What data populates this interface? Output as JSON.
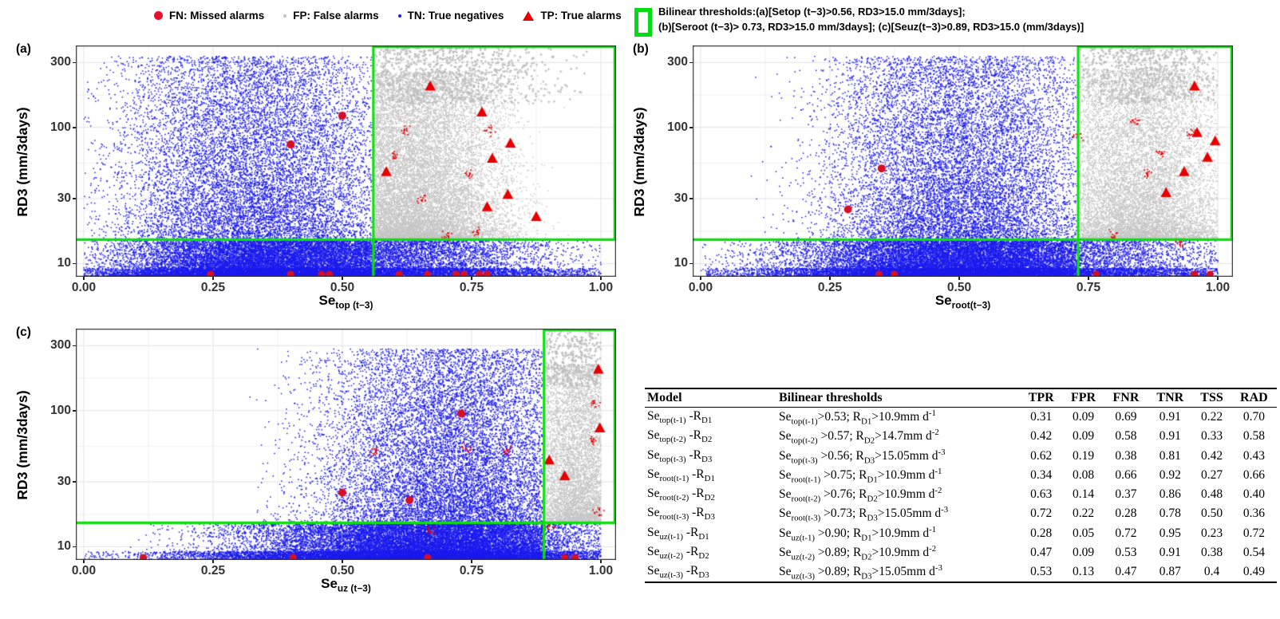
{
  "legend": {
    "items": [
      {
        "key": "FN",
        "label": "FN: Missed alarms"
      },
      {
        "key": "FP",
        "label": "FP: False alarms"
      },
      {
        "key": "TN",
        "label": "TN: True negatives"
      },
      {
        "key": "TP",
        "label": "TP: True alarms"
      }
    ],
    "bilinear": {
      "line1": "Bilinear thresholds:(a)[Setop (t−3)>0.56, RD3>15.0 mm/3days];",
      "line2": "(b)[Seroot (t−3)> 0.73, RD3>15.0 mm/3days]; (c)[Seuz(t−3)>0.89, RD3>15.0 (mm/3days)]"
    }
  },
  "colors": {
    "tn_blue": "#1b1bee",
    "fp_gray": "#c6c6c6",
    "fp_gray_sparse": "#bdbdbd",
    "tp_red": "#e60000",
    "fn_red": "#d60f26",
    "threshold_green": "#0ce00c",
    "grid_major": "#e3e3e3",
    "grid_minor": "#efefef",
    "border": "#333333"
  },
  "chart_data": [
    {
      "type": "scatter",
      "panel": "a",
      "tag": "(a)",
      "xlabel": "Se_{top (t−3)}",
      "ylabel": "RD3 (mm/3days)",
      "x_ticks": [
        {
          "v": 0,
          "label": "0.00"
        },
        {
          "v": 0.25,
          "label": "0.25"
        },
        {
          "v": 0.5,
          "label": "0.50"
        },
        {
          "v": 0.75,
          "label": "0.75"
        },
        {
          "v": 1,
          "label": "1.00"
        }
      ],
      "y_ticks": [
        {
          "v": 10,
          "label": "10"
        },
        {
          "v": 30,
          "label": "30"
        },
        {
          "v": 100,
          "label": "100"
        },
        {
          "v": 300,
          "label": "300"
        }
      ],
      "y_minor": [
        17.3,
        54.8,
        173
      ],
      "x_minor": [
        0.125,
        0.375,
        0.625,
        0.875
      ],
      "ylog_range": [
        8,
        400
      ],
      "threshold": {
        "x": 0.56,
        "y": 15.0
      },
      "fn_interior": [
        [
          0.4,
          75
        ],
        [
          0.5,
          122
        ]
      ],
      "fn_bottom_x": [
        0.245,
        0.4,
        0.46,
        0.475,
        0.61,
        0.665,
        0.72,
        0.735,
        0.765,
        0.78
      ],
      "tp_triangles": [
        [
          0.585,
          47
        ],
        [
          0.67,
          200
        ],
        [
          0.77,
          129
        ],
        [
          0.825,
          76
        ],
        [
          0.79,
          59
        ],
        [
          0.82,
          32
        ],
        [
          0.78,
          26
        ],
        [
          0.875,
          22
        ]
      ],
      "tp_clusters": [
        [
          0.62,
          95
        ],
        [
          0.784,
          97
        ],
        [
          0.655,
          30
        ],
        [
          0.7,
          16
        ],
        [
          0.745,
          46
        ],
        [
          0.6,
          62
        ],
        [
          0.76,
          17
        ]
      ],
      "clouds": [
        {
          "cls": "tn",
          "n": 20000,
          "cx": 0.33,
          "sx": 0.42,
          "xmin": 0,
          "xmax": 0.557,
          "mode": "low",
          "p": 2.3,
          "emax": 1.62
        },
        {
          "cls": "tn",
          "n": 9000,
          "cx": 0.5,
          "sx": 0.6,
          "xmin": 0,
          "xmax": 1.0,
          "mode": "band"
        },
        {
          "cls": "tn",
          "n": 4500,
          "cx": 0.5,
          "sx": 0.85,
          "xmin": 0,
          "xmax": 1.0,
          "mode": "strip"
        },
        {
          "cls": "fp",
          "n": 13000,
          "cx": 0.62,
          "sx": 0.3,
          "xmin": 0.563,
          "xmax": 1.0,
          "mode": "fp",
          "p": 1.9,
          "emax": 1.23
        },
        {
          "cls": "fps",
          "n": 900,
          "cx": 0.7,
          "sx": 0.34,
          "xmin": 0.563,
          "xmax": 1.0,
          "mode": "sparse",
          "e0": 1.0,
          "e1": 1.42
        }
      ]
    },
    {
      "type": "scatter",
      "panel": "b",
      "tag": "(b)",
      "xlabel": "Se_{root(t−3)}",
      "ylabel": "RD3 (mm/3days)",
      "x_ticks": [
        {
          "v": 0,
          "label": "0.00"
        },
        {
          "v": 0.25,
          "label": "0.25"
        },
        {
          "v": 0.5,
          "label": "0.50"
        },
        {
          "v": 0.75,
          "label": "0.75"
        },
        {
          "v": 1,
          "label": "1.00"
        }
      ],
      "y_ticks": [
        {
          "v": 10,
          "label": "10"
        },
        {
          "v": 30,
          "label": "30"
        },
        {
          "v": 100,
          "label": "100"
        },
        {
          "v": 300,
          "label": "300"
        }
      ],
      "y_minor": [
        17.3,
        54.8,
        173
      ],
      "x_minor": [
        0.125,
        0.375,
        0.625,
        0.875
      ],
      "ylog_range": [
        8,
        400
      ],
      "threshold": {
        "x": 0.73,
        "y": 15.0
      },
      "fn_interior": [
        [
          0.285,
          25
        ],
        [
          0.35,
          50
        ]
      ],
      "fn_bottom_x": [
        0.345,
        0.375,
        0.765,
        0.955,
        0.985
      ],
      "tp_triangles": [
        [
          0.955,
          200
        ],
        [
          0.96,
          91
        ],
        [
          0.995,
          79
        ],
        [
          0.98,
          60
        ],
        [
          0.935,
          47
        ],
        [
          0.9,
          33
        ]
      ],
      "tp_clusters": [
        [
          0.84,
          110
        ],
        [
          0.73,
          87
        ],
        [
          0.89,
          65
        ],
        [
          0.865,
          45
        ],
        [
          0.8,
          16
        ],
        [
          0.925,
          14
        ],
        [
          0.95,
          90
        ]
      ],
      "clouds": [
        {
          "cls": "tn",
          "n": 20000,
          "cx": 0.5,
          "sx": 0.4,
          "xmin": 0,
          "xmax": 0.727,
          "mode": "low",
          "p": 2.3,
          "emax": 1.62
        },
        {
          "cls": "tn",
          "n": 9000,
          "cx": 0.55,
          "sx": 0.65,
          "xmin": 0,
          "xmax": 1.0,
          "mode": "band"
        },
        {
          "cls": "tn",
          "n": 4500,
          "cx": 0.55,
          "sx": 0.85,
          "xmin": 0,
          "xmax": 1.0,
          "mode": "strip"
        },
        {
          "cls": "fp",
          "n": 9500,
          "cx": 0.84,
          "sx": 0.28,
          "xmin": 0.733,
          "xmax": 1.0,
          "mode": "fp",
          "p": 1.9,
          "emax": 1.25
        },
        {
          "cls": "fps",
          "n": 700,
          "cx": 0.86,
          "sx": 0.26,
          "xmin": 0.733,
          "xmax": 1.0,
          "mode": "sparse",
          "e0": 1.0,
          "e1": 1.42
        }
      ]
    },
    {
      "type": "scatter",
      "panel": "c",
      "tag": "(c)",
      "xlabel": "Se_{uz (t−3)}",
      "ylabel": "RD3 (mm/3days)",
      "x_ticks": [
        {
          "v": 0,
          "label": "0.00"
        },
        {
          "v": 0.25,
          "label": "0.25"
        },
        {
          "v": 0.5,
          "label": "0.50"
        },
        {
          "v": 0.75,
          "label": "0.75"
        },
        {
          "v": 1,
          "label": "1.00"
        }
      ],
      "y_ticks": [
        {
          "v": 10,
          "label": "10"
        },
        {
          "v": 30,
          "label": "30"
        },
        {
          "v": 100,
          "label": "100"
        },
        {
          "v": 300,
          "label": "300"
        }
      ],
      "y_minor": [
        17.3,
        54.8,
        173
      ],
      "x_minor": [
        0.125,
        0.375,
        0.625,
        0.875
      ],
      "ylog_range": [
        8,
        400
      ],
      "threshold": {
        "x": 0.89,
        "y": 15.0
      },
      "fn_interior": [
        [
          0.5,
          25
        ],
        [
          0.63,
          22
        ],
        [
          0.73,
          95
        ]
      ],
      "fn_bottom_x": [
        0.115,
        0.405,
        0.665,
        0.93,
        0.95
      ],
      "tp_triangles": [
        [
          0.995,
          200
        ],
        [
          0.998,
          74
        ],
        [
          0.9,
          43
        ],
        [
          0.93,
          33
        ]
      ],
      "tp_clusters": [
        [
          0.99,
          115
        ],
        [
          0.985,
          60
        ],
        [
          0.82,
          50
        ],
        [
          0.74,
          52
        ],
        [
          0.56,
          50
        ],
        [
          0.995,
          18
        ],
        [
          0.9,
          14
        ],
        [
          0.67,
          13
        ]
      ],
      "clouds": [
        {
          "cls": "tn",
          "n": 21000,
          "cx": 0.72,
          "sx": 0.42,
          "xmin": 0,
          "xmax": 0.887,
          "mode": "low",
          "p": 2.3,
          "emax": 1.55
        },
        {
          "cls": "tn",
          "n": 9000,
          "cx": 0.65,
          "sx": 0.6,
          "xmin": 0,
          "xmax": 1.0,
          "mode": "band"
        },
        {
          "cls": "tn",
          "n": 4500,
          "cx": 0.6,
          "sx": 0.8,
          "xmin": 0,
          "xmax": 1.0,
          "mode": "strip"
        },
        {
          "cls": "fp",
          "n": 5200,
          "cx": 0.96,
          "sx": 0.16,
          "xmin": 0.893,
          "xmax": 1.0,
          "mode": "fp",
          "p": 1.7,
          "emax": 1.16
        },
        {
          "cls": "fps",
          "n": 350,
          "cx": 0.95,
          "sx": 0.15,
          "xmin": 0.893,
          "xmax": 1.0,
          "mode": "sparse",
          "e0": 1.0,
          "e1": 1.42
        }
      ]
    }
  ],
  "table": {
    "columns": [
      "Model",
      "Bilinear thresholds",
      "TPR",
      "FPR",
      "FNR",
      "TNR",
      "TSS",
      "RAD"
    ],
    "rows": [
      {
        "model": "Se_{top(t-1)} -R_{D1}",
        "threshold": "Se_{top(t-1)}>0.53; R_{D1}>10.9mm d^{-1}",
        "tpr": "0.31",
        "fpr": "0.09",
        "fnr": "0.69",
        "tnr": "0.91",
        "tss": "0.22",
        "rad": "0.70"
      },
      {
        "model": "Se_{top(t-2)} -R_{D2}",
        "threshold": "Se_{top(t-2)} >0.57; R_{D2}>14.7mm d^{-2}",
        "tpr": "0.42",
        "fpr": "0.09",
        "fnr": "0.58",
        "tnr": "0.91",
        "tss": "0.33",
        "rad": "0.58"
      },
      {
        "model": "Se_{top(t-3)} -R_{D3}",
        "threshold": "Se_{top(t-3)} >0.56; R_{D3}>15.05mm d^{-3}",
        "tpr": "0.62",
        "fpr": "0.19",
        "fnr": "0.38",
        "tnr": "0.81",
        "tss": "0.42",
        "rad": "0.43"
      },
      {
        "model": "Se_{root(t-1)} -R_{D1}",
        "threshold": "Se_{root(t-1)} >0.75; R_{D1}>10.9mm d^{-1}",
        "tpr": "0.34",
        "fpr": "0.08",
        "fnr": "0.66",
        "tnr": "0.92",
        "tss": "0.27",
        "rad": "0.66"
      },
      {
        "model": "Se_{root(t-2)} -R_{D2}",
        "threshold": "Se_{root(t-2)} >0.76; R_{D2}>10.9mm d^{-2}",
        "tpr": "0.63",
        "fpr": "0.14",
        "fnr": "0.37",
        "tnr": "0.86",
        "tss": "0.48",
        "rad": "0.40"
      },
      {
        "model": "Se_{root(t-3)} -R_{D3}",
        "threshold": "Se_{root(t-3)} >0.73; R_{D3}>15.05mm d^{-3}",
        "tpr": "0.72",
        "fpr": "0.22",
        "fnr": "0.28",
        "tnr": "0.78",
        "tss": "0.50",
        "rad": "0.36"
      },
      {
        "model": "Se_{uz(t-1)} -R_{D1}",
        "threshold": "Se_{uz(t-1)} >0.90; R_{D1}>10.9mm d^{-1}",
        "tpr": "0.28",
        "fpr": "0.05",
        "fnr": "0.72",
        "tnr": "0.95",
        "tss": "0.23",
        "rad": "0.72"
      },
      {
        "model": "Se_{uz(t-2)} -R_{D2}",
        "threshold": "Se_{uz(t-2)} >0.89; R_{D2}>10.9mm d^{-2}",
        "tpr": "0.47",
        "fpr": "0.09",
        "fnr": "0.53",
        "tnr": "0.91",
        "tss": "0.38",
        "rad": "0.54"
      },
      {
        "model": "Se_{uz(t-3)} -R_{D3}",
        "threshold": "Se_{uz(t-3)} >0.89; R_{D3}>15.05mm d^{-3}",
        "tpr": "0.53",
        "fpr": "0.13",
        "fnr": "0.47",
        "tnr": "0.87",
        "tss": "0.4",
        "rad": "0.49"
      }
    ]
  }
}
